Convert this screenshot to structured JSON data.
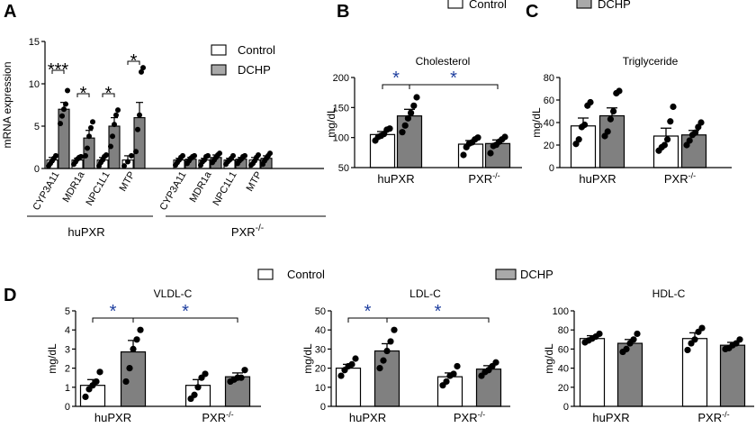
{
  "figure": {
    "panel_letters": [
      "A",
      "B",
      "C",
      "D"
    ],
    "legend_top": {
      "control_label": "Control",
      "dchp_label": "DCHP"
    },
    "legend_d": {
      "control_label": "Control",
      "dchp_label": "DCHP"
    },
    "colors": {
      "control": "#ffffff",
      "dchp": "#808080",
      "star_blue": "#1f3f9f",
      "axis": "#000000"
    }
  },
  "chart_data": [
    {
      "id": "A",
      "type": "bar",
      "ylabel": "mRNA expression",
      "ylim": [
        0,
        15
      ],
      "yticks": [
        0,
        5,
        10,
        15
      ],
      "series_names": [
        "Control",
        "DCHP"
      ],
      "groups": [
        {
          "name": "huPXR",
          "categories": [
            {
              "name": "CYP3A11",
              "control": {
                "mean": 1.0,
                "sem": 0.3,
                "points": [
                  0.3,
                  0.6,
                  0.9,
                  1.2,
                  1.5
                ]
              },
              "dchp": {
                "mean": 7.0,
                "sem": 0.8,
                "points": [
                  5.3,
                  6.2,
                  7.0,
                  7.6,
                  9.2
                ]
              }
            },
            {
              "name": "MDR1a",
              "control": {
                "mean": 1.0,
                "sem": 0.2,
                "points": [
                  0.5,
                  0.8,
                  1.1,
                  1.3,
                  1.4
                ]
              },
              "dchp": {
                "mean": 3.6,
                "sem": 0.9,
                "points": [
                  1.5,
                  2.4,
                  3.8,
                  4.8,
                  5.5
                ]
              }
            },
            {
              "name": "NPC1L1",
              "control": {
                "mean": 1.0,
                "sem": 0.3,
                "points": [
                  0.3,
                  0.7,
                  1.0,
                  1.4,
                  1.6
                ]
              },
              "dchp": {
                "mean": 5.0,
                "sem": 1.0,
                "points": [
                  2.6,
                  3.8,
                  5.2,
                  6.3,
                  6.9
                ]
              }
            },
            {
              "name": "MTP",
              "control": {
                "mean": 1.0,
                "sem": 0.5,
                "points": [
                  0.3,
                  0.8,
                  1.5
                ]
              },
              "dchp": {
                "mean": 6.0,
                "sem": 1.8,
                "points": [
                  2.0,
                  4.6,
                  6.3,
                  11.4,
                  11.9
                ]
              }
            }
          ]
        },
        {
          "name": "PXR-/-",
          "categories": [
            {
              "name": "CYP3A11",
              "control": {
                "mean": 1.0,
                "sem": 0.2,
                "points": [
                  0.4,
                  0.7,
                  1.0,
                  1.3,
                  1.5
                ]
              },
              "dchp": {
                "mean": 1.1,
                "sem": 0.2,
                "points": [
                  0.6,
                  0.9,
                  1.2,
                  1.4,
                  1.5
                ]
              }
            },
            {
              "name": "MDR1a",
              "control": {
                "mean": 1.0,
                "sem": 0.2,
                "points": [
                  0.4,
                  0.8,
                  1.0,
                  1.4,
                  1.5
                ]
              },
              "dchp": {
                "mean": 1.3,
                "sem": 0.3,
                "points": [
                  0.7,
                  1.0,
                  1.3,
                  1.6,
                  1.8
                ]
              }
            },
            {
              "name": "NPC1L1",
              "control": {
                "mean": 1.0,
                "sem": 0.2,
                "points": [
                  0.5,
                  0.8,
                  1.0,
                  1.2,
                  1.5
                ]
              },
              "dchp": {
                "mean": 1.1,
                "sem": 0.2,
                "points": [
                  0.6,
                  0.9,
                  1.1,
                  1.4,
                  1.5
                ]
              }
            },
            {
              "name": "MTP",
              "control": {
                "mean": 1.0,
                "sem": 0.3,
                "points": [
                  0.4,
                  0.6,
                  0.9,
                  1.3,
                  1.6
                ]
              },
              "dchp": {
                "mean": 1.2,
                "sem": 0.3,
                "points": [
                  0.5,
                  0.9,
                  1.2,
                  1.5,
                  1.8
                ]
              }
            }
          ]
        }
      ],
      "significance": [
        {
          "group": 0,
          "category": 0,
          "label": "***"
        },
        {
          "group": 0,
          "category": 1,
          "label": "*"
        },
        {
          "group": 0,
          "category": 2,
          "label": "*"
        },
        {
          "group": 0,
          "category": 3,
          "label": "*"
        }
      ],
      "group_labels": [
        "huPXR",
        "PXR",
        "-/-"
      ]
    },
    {
      "id": "B",
      "type": "bar",
      "title": "Cholesterol",
      "ylabel": "mg/dL",
      "ylim": [
        50,
        200
      ],
      "yticks": [
        50,
        100,
        150,
        200
      ],
      "categories": [
        "huPXR",
        "PXR-/-"
      ],
      "category_labels": [
        {
          "base": "huPXR",
          "sup": ""
        },
        {
          "base": "PXR",
          "sup": "-/-"
        }
      ],
      "series": [
        {
          "name": "Control",
          "means": [
            105,
            89
          ],
          "sem": [
            5,
            6
          ],
          "points": [
            [
              95,
              101,
              103,
              106,
              113,
              115
            ],
            [
              71,
              84,
              90,
              92,
              97,
              100
            ]
          ]
        },
        {
          "name": "DCHP",
          "means": [
            136,
            90
          ],
          "sem": [
            11,
            6
          ],
          "points": [
            [
              109,
              120,
              132,
              141,
              153,
              167
            ],
            [
              74,
              86,
              88,
              93,
              97,
              101
            ]
          ]
        }
      ],
      "significance": [
        {
          "from": [
            0,
            0
          ],
          "to": [
            0,
            1
          ],
          "label": "*"
        },
        {
          "from": [
            0,
            1
          ],
          "to": [
            1,
            1
          ],
          "label": "*"
        }
      ]
    },
    {
      "id": "C",
      "type": "bar",
      "title": "Triglyceride",
      "ylabel": "mg/dL",
      "ylim": [
        0,
        80
      ],
      "yticks": [
        0,
        20,
        40,
        60,
        80
      ],
      "categories": [
        "huPXR",
        "PXR-/-"
      ],
      "category_labels": [
        {
          "base": "huPXR",
          "sup": ""
        },
        {
          "base": "PXR",
          "sup": "-/-"
        }
      ],
      "series": [
        {
          "name": "Control",
          "means": [
            37,
            28
          ],
          "sem": [
            7,
            7
          ],
          "points": [
            [
              21,
              25,
              36,
              38,
              55,
              58
            ],
            [
              15,
              18,
              20,
              25,
              41,
              54
            ]
          ]
        },
        {
          "name": "DCHP",
          "means": [
            46,
            29
          ],
          "sem": [
            7,
            4
          ],
          "points": [
            [
              28,
              32,
              43,
              50,
              66,
              68
            ],
            [
              20,
              24,
              29,
              31,
              36,
              40
            ]
          ]
        }
      ],
      "significance": []
    },
    {
      "id": "D-VLDL",
      "type": "bar",
      "title": "VLDL-C",
      "ylabel": "mg/dL",
      "ylim": [
        0,
        5
      ],
      "yticks": [
        0,
        1,
        2,
        3,
        4,
        5
      ],
      "categories": [
        "huPXR",
        "PXR-/-"
      ],
      "category_labels": [
        {
          "base": "huPXR",
          "sup": ""
        },
        {
          "base": "PXR",
          "sup": "-/-"
        }
      ],
      "series": [
        {
          "name": "Control",
          "means": [
            1.1,
            1.1
          ],
          "sem": [
            0.3,
            0.3
          ],
          "points": [
            [
              0.5,
              0.9,
              1.1,
              1.3,
              1.8
            ],
            [
              0.4,
              0.6,
              1.0,
              1.5,
              1.7
            ]
          ]
        },
        {
          "name": "DCHP",
          "means": [
            2.85,
            1.55
          ],
          "sem": [
            0.6,
            0.2
          ],
          "points": [
            [
              1.3,
              2.0,
              3.0,
              3.5,
              4.0
            ],
            [
              1.3,
              1.4,
              1.5,
              1.5,
              1.9
            ]
          ]
        }
      ],
      "significance": [
        {
          "from": [
            0,
            0
          ],
          "to": [
            0,
            1
          ],
          "label": "*"
        },
        {
          "from": [
            0,
            1
          ],
          "to": [
            1,
            1
          ],
          "label": "*"
        }
      ]
    },
    {
      "id": "D-LDL",
      "type": "bar",
      "title": "LDL-C",
      "ylabel": "mg/dL",
      "ylim": [
        0,
        50
      ],
      "yticks": [
        0,
        10,
        20,
        30,
        40,
        50
      ],
      "categories": [
        "huPXR",
        "PXR-/-"
      ],
      "category_labels": [
        {
          "base": "huPXR",
          "sup": ""
        },
        {
          "base": "PXR",
          "sup": "-/-"
        }
      ],
      "series": [
        {
          "name": "Control",
          "means": [
            20,
            15.5
          ],
          "sem": [
            2,
            2
          ],
          "points": [
            [
              16,
              19,
              21,
              22,
              25
            ],
            [
              11,
              13,
              16,
              17,
              21
            ]
          ]
        },
        {
          "name": "DCHP",
          "means": [
            29,
            19.5
          ],
          "sem": [
            3.8,
            1.8
          ],
          "points": [
            [
              20,
              24,
              29,
              34,
              40
            ],
            [
              16,
              18,
              19,
              21,
              23
            ]
          ]
        }
      ],
      "significance": [
        {
          "from": [
            0,
            0
          ],
          "to": [
            0,
            1
          ],
          "label": "*"
        },
        {
          "from": [
            0,
            1
          ],
          "to": [
            1,
            1
          ],
          "label": "*"
        }
      ]
    },
    {
      "id": "D-HDL",
      "type": "bar",
      "title": "HDL-C",
      "ylabel": "mg/dL",
      "ylim": [
        0,
        100
      ],
      "yticks": [
        0,
        20,
        40,
        60,
        80,
        100
      ],
      "categories": [
        "huPXR",
        "PXR-/-"
      ],
      "category_labels": [
        {
          "base": "huPXR",
          "sup": ""
        },
        {
          "base": "PXR",
          "sup": "-/-"
        }
      ],
      "series": [
        {
          "name": "Control",
          "means": [
            71,
            71
          ],
          "sem": [
            3,
            6
          ],
          "points": [
            [
              67,
              69,
              71,
              73,
              76
            ],
            [
              59,
              66,
              70,
              78,
              82
            ]
          ]
        },
        {
          "name": "DCHP",
          "means": [
            66,
            64
          ],
          "sem": [
            4,
            3
          ],
          "points": [
            [
              57,
              60,
              66,
              70,
              76
            ],
            [
              60,
              61,
              64,
              66,
              70
            ]
          ]
        }
      ],
      "significance": []
    }
  ]
}
